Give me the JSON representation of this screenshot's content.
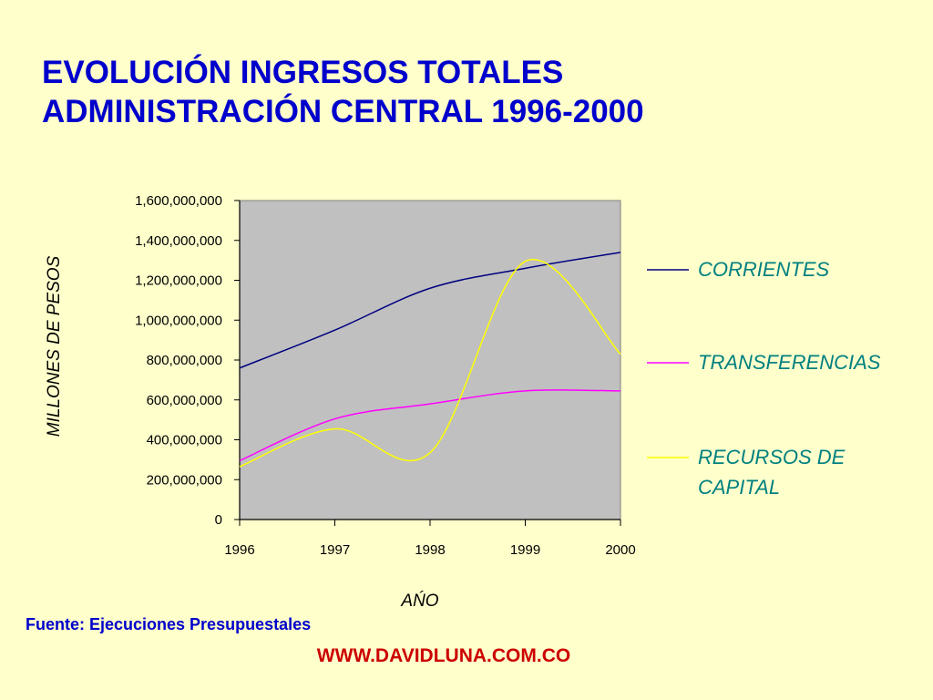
{
  "slide": {
    "title_line1": "EVOLUCIÓN INGRESOS TOTALES",
    "title_line2": "ADMINISTRACIÓN CENTRAL 1996-2000",
    "source": "Fuente: Ejecuciones Presupuestales",
    "website": "WWW.DAVIDLUNA.COM.CO"
  },
  "colors": {
    "background": "#ffffcc",
    "plot_area": "#c0c0c0",
    "title": "#0000cc",
    "legend_text": "#008080",
    "website": "#cc0000"
  },
  "chart_data": {
    "type": "line",
    "title": "",
    "xlabel": "AŃO",
    "ylabel": "MILLONES DE PESOS",
    "xlim": [
      1996,
      2000
    ],
    "ylim": [
      0,
      1600000000
    ],
    "x_ticks": [
      "1996",
      "1997",
      "1998",
      "1999",
      "2000"
    ],
    "y_ticks": [
      "0",
      "200,000,000",
      "400,000,000",
      "600,000,000",
      "800,000,000",
      "1,000,000,000",
      "1,200,000,000",
      "1,400,000,000",
      "1,600,000,000"
    ],
    "grid": false,
    "legend_position": "right",
    "x": [
      1996,
      1997,
      1998,
      1999,
      2000
    ],
    "series": [
      {
        "name": "CORRIENTES",
        "color": "#000080",
        "values": [
          760000000,
          950000000,
          1160000000,
          1260000000,
          1340000000
        ]
      },
      {
        "name": "TRANSFERENCIAS",
        "color": "#ff00ff",
        "values": [
          295000000,
          505000000,
          580000000,
          645000000,
          645000000
        ]
      },
      {
        "name": "RECURSOS DE CAPITAL",
        "color": "#ffff00",
        "values": [
          265000000,
          455000000,
          335000000,
          1295000000,
          830000000
        ]
      }
    ]
  }
}
